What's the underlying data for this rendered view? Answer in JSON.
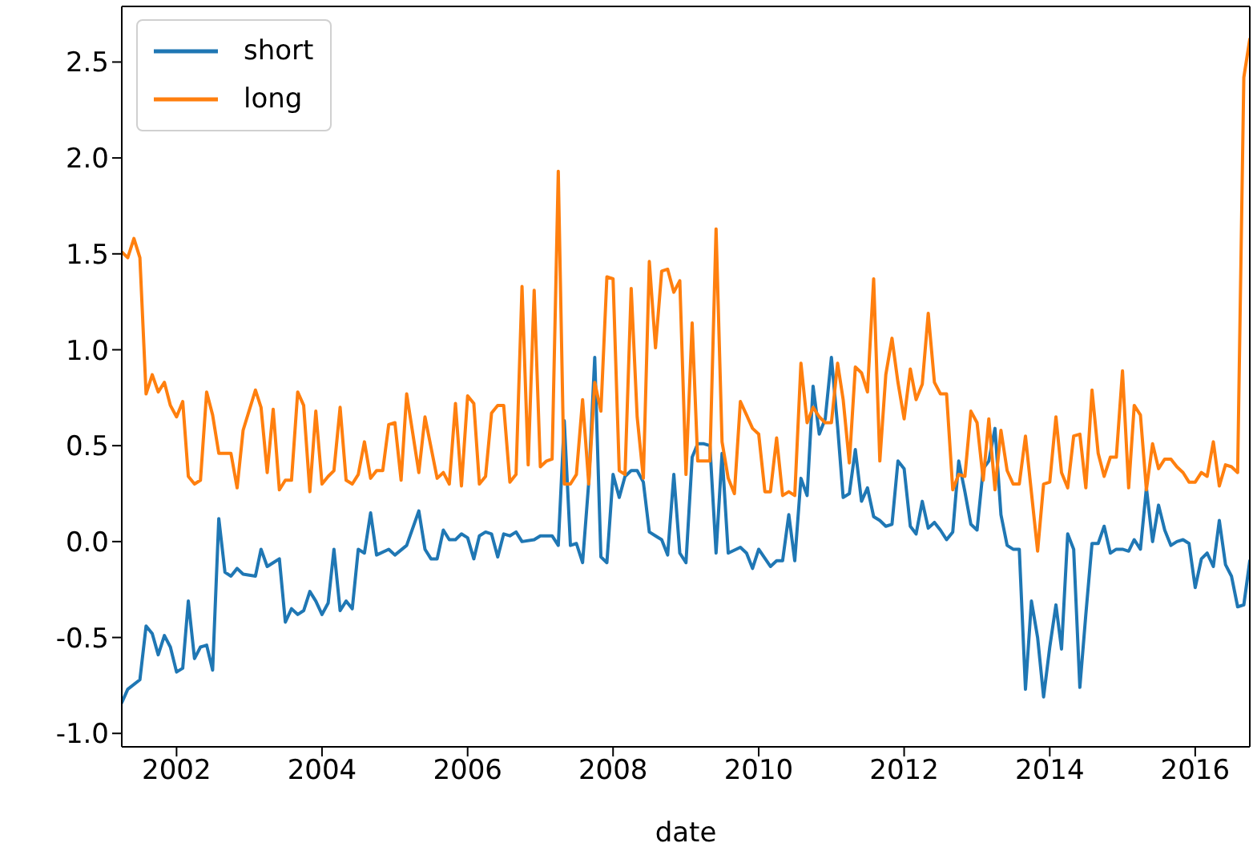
{
  "chart_data": {
    "type": "line",
    "xlabel": "date",
    "legend": "top left",
    "marker": "none",
    "line_style": "solid",
    "xlim": [
      "2001-04",
      "2016-10"
    ],
    "xticks": [
      "2002",
      "2004",
      "2006",
      "2008",
      "2010",
      "2012",
      "2014",
      "2016"
    ],
    "ylim": [
      -1.07,
      2.79
    ],
    "yticks": [
      {
        "value": -1,
        "label": "-1.0"
      },
      {
        "value": -0.5,
        "label": "-0.5"
      },
      {
        "value": 0,
        "label": "0.0"
      },
      {
        "value": 0.5,
        "label": "0.5"
      },
      {
        "value": 1,
        "label": "1.0"
      },
      {
        "value": 1.5,
        "label": "1.5"
      },
      {
        "value": 2,
        "label": "2.0"
      },
      {
        "value": 2.5,
        "label": "2.5"
      }
    ],
    "series": [
      {
        "name": "short",
        "color": "#1f77b4",
        "x": [
          "2001-04",
          "2001-05",
          "2001-07",
          "2001-08",
          "2001-09",
          "2001-10",
          "2001-11",
          "2001-12",
          "2002-01",
          "2002-02",
          "2002-03",
          "2002-04",
          "2002-05",
          "2002-06",
          "2002-07",
          "2002-08",
          "2002-09",
          "2002-10",
          "2002-11",
          "2002-12",
          "2003-02",
          "2003-03",
          "2003-04",
          "2003-05",
          "2003-06",
          "2003-07",
          "2003-08",
          "2003-09",
          "2003-10",
          "2003-11",
          "2003-12",
          "2004-01",
          "2004-02",
          "2004-03",
          "2004-04",
          "2004-05",
          "2004-06",
          "2004-07",
          "2004-08",
          "2004-09",
          "2004-10",
          "2004-12",
          "2005-01",
          "2005-03",
          "2005-05",
          "2005-06",
          "2005-07",
          "2005-08",
          "2005-09",
          "2005-10",
          "2005-11",
          "2005-12",
          "2006-01",
          "2006-02",
          "2006-03",
          "2006-04",
          "2006-05",
          "2006-06",
          "2006-07",
          "2006-08",
          "2006-09",
          "2006-10",
          "2006-12",
          "2007-01",
          "2007-03",
          "2007-04",
          "2007-05",
          "2007-06",
          "2007-07",
          "2007-08",
          "2007-09",
          "2007-10",
          "2007-11",
          "2007-12",
          "2008-01",
          "2008-02",
          "2008-03",
          "2008-04",
          "2008-05",
          "2008-06",
          "2008-07",
          "2008-08",
          "2008-09",
          "2008-10",
          "2008-11",
          "2008-12",
          "2009-01",
          "2009-02",
          "2009-03",
          "2009-04",
          "2009-05",
          "2009-06",
          "2009-07",
          "2009-08",
          "2009-10",
          "2009-11",
          "2009-12",
          "2010-01",
          "2010-03",
          "2010-04",
          "2010-05",
          "2010-06",
          "2010-07",
          "2010-08",
          "2010-09",
          "2010-10",
          "2010-11",
          "2010-12",
          "2011-01",
          "2011-02",
          "2011-03",
          "2011-04",
          "2011-05",
          "2011-06",
          "2011-07",
          "2011-08",
          "2011-09",
          "2011-10",
          "2011-11",
          "2011-12",
          "2012-01",
          "2012-02",
          "2012-03",
          "2012-04",
          "2012-05",
          "2012-06",
          "2012-07",
          "2012-08",
          "2012-09",
          "2012-10",
          "2012-11",
          "2012-12",
          "2013-01",
          "2013-02",
          "2013-03",
          "2013-04",
          "2013-05",
          "2013-06",
          "2013-07",
          "2013-08",
          "2013-09",
          "2013-10",
          "2013-11",
          "2013-12",
          "2014-01",
          "2014-02",
          "2014-03",
          "2014-04",
          "2014-05",
          "2014-06",
          "2014-07",
          "2014-08",
          "2014-09",
          "2014-10",
          "2014-11",
          "2014-12",
          "2015-01",
          "2015-02",
          "2015-03",
          "2015-04",
          "2015-05",
          "2015-06",
          "2015-07",
          "2015-08",
          "2015-09",
          "2015-10",
          "2015-11",
          "2015-12",
          "2016-01",
          "2016-02",
          "2016-03",
          "2016-04",
          "2016-05",
          "2016-06",
          "2016-07",
          "2016-08",
          "2016-09",
          "2016-10"
        ],
        "values": [
          -0.84,
          -0.77,
          -0.72,
          -0.44,
          -0.48,
          -0.59,
          -0.49,
          -0.55,
          -0.68,
          -0.66,
          -0.31,
          -0.61,
          -0.55,
          -0.54,
          -0.67,
          0.12,
          -0.16,
          -0.18,
          -0.14,
          -0.17,
          -0.18,
          -0.04,
          -0.13,
          -0.11,
          -0.09,
          -0.42,
          -0.35,
          -0.38,
          -0.36,
          -0.26,
          -0.31,
          -0.38,
          -0.32,
          -0.04,
          -0.36,
          -0.31,
          -0.35,
          -0.04,
          -0.06,
          0.15,
          -0.07,
          -0.04,
          -0.07,
          -0.02,
          0.16,
          -0.04,
          -0.09,
          -0.09,
          0.06,
          0.01,
          0.01,
          0.04,
          0.02,
          -0.09,
          0.03,
          0.05,
          0.04,
          -0.08,
          0.04,
          0.03,
          0.05,
          0.0,
          0.01,
          0.03,
          0.03,
          -0.02,
          0.63,
          -0.02,
          -0.01,
          -0.11,
          0.31,
          0.96,
          -0.08,
          -0.11,
          0.35,
          0.23,
          0.34,
          0.37,
          0.37,
          0.31,
          0.05,
          0.03,
          0.01,
          -0.07,
          0.35,
          -0.06,
          -0.11,
          0.44,
          0.51,
          0.51,
          0.5,
          -0.06,
          0.46,
          -0.06,
          -0.03,
          -0.06,
          -0.14,
          -0.04,
          -0.13,
          -0.1,
          -0.1,
          0.14,
          -0.1,
          0.33,
          0.24,
          0.81,
          0.56,
          0.64,
          0.96,
          0.6,
          0.23,
          0.25,
          0.48,
          0.21,
          0.28,
          0.13,
          0.11,
          0.08,
          0.09,
          0.42,
          0.38,
          0.08,
          0.04,
          0.21,
          0.07,
          0.1,
          0.06,
          0.01,
          0.05,
          0.42,
          0.26,
          0.09,
          0.06,
          0.38,
          0.42,
          0.59,
          0.14,
          -0.02,
          -0.04,
          -0.04,
          -0.77,
          -0.31,
          -0.5,
          -0.81,
          -0.55,
          -0.33,
          -0.56,
          0.04,
          -0.04,
          -0.76,
          -0.38,
          -0.01,
          -0.01,
          0.08,
          -0.06,
          -0.04,
          -0.04,
          -0.05,
          0.01,
          -0.04,
          0.28,
          0.0,
          0.19,
          0.06,
          -0.02,
          0.0,
          0.01,
          -0.01,
          -0.24,
          -0.09,
          -0.06,
          -0.13,
          0.11,
          -0.12,
          -0.18,
          -0.34,
          -0.33,
          -0.1
        ]
      },
      {
        "name": "long",
        "color": "#ff7f0e",
        "x": [
          "2001-04",
          "2001-05",
          "2001-06",
          "2001-07",
          "2001-08",
          "2001-09",
          "2001-10",
          "2001-11",
          "2001-12",
          "2002-01",
          "2002-02",
          "2002-03",
          "2002-04",
          "2002-05",
          "2002-06",
          "2002-07",
          "2002-08",
          "2002-10",
          "2002-11",
          "2002-12",
          "2003-02",
          "2003-03",
          "2003-04",
          "2003-05",
          "2003-06",
          "2003-07",
          "2003-08",
          "2003-09",
          "2003-10",
          "2003-11",
          "2003-12",
          "2004-01",
          "2004-02",
          "2004-03",
          "2004-04",
          "2004-05",
          "2004-06",
          "2004-07",
          "2004-08",
          "2004-09",
          "2004-10",
          "2004-11",
          "2004-12",
          "2005-01",
          "2005-02",
          "2005-03",
          "2005-05",
          "2005-06",
          "2005-08",
          "2005-09",
          "2005-10",
          "2005-11",
          "2005-12",
          "2006-01",
          "2006-02",
          "2006-03",
          "2006-04",
          "2006-05",
          "2006-06",
          "2006-07",
          "2006-08",
          "2006-09",
          "2006-10",
          "2006-11",
          "2006-12",
          "2007-01",
          "2007-02",
          "2007-03",
          "2007-04",
          "2007-05",
          "2007-06",
          "2007-07",
          "2007-08",
          "2007-09",
          "2007-10",
          "2007-11",
          "2007-12",
          "2008-01",
          "2008-02",
          "2008-03",
          "2008-04",
          "2008-05",
          "2008-06",
          "2008-07",
          "2008-08",
          "2008-09",
          "2008-10",
          "2008-11",
          "2008-12",
          "2009-01",
          "2009-02",
          "2009-03",
          "2009-05",
          "2009-06",
          "2009-07",
          "2009-08",
          "2009-09",
          "2009-10",
          "2009-11",
          "2009-12",
          "2010-01",
          "2010-02",
          "2010-03",
          "2010-04",
          "2010-05",
          "2010-06",
          "2010-07",
          "2010-08",
          "2010-09",
          "2010-10",
          "2010-11",
          "2010-12",
          "2011-01",
          "2011-02",
          "2011-03",
          "2011-04",
          "2011-05",
          "2011-06",
          "2011-07",
          "2011-08",
          "2011-09",
          "2011-10",
          "2011-11",
          "2011-12",
          "2012-01",
          "2012-02",
          "2012-03",
          "2012-04",
          "2012-05",
          "2012-06",
          "2012-07",
          "2012-08",
          "2012-09",
          "2012-10",
          "2012-11",
          "2012-12",
          "2013-01",
          "2013-02",
          "2013-03",
          "2013-04",
          "2013-05",
          "2013-06",
          "2013-07",
          "2013-08",
          "2013-09",
          "2013-11",
          "2013-12",
          "2014-01",
          "2014-02",
          "2014-03",
          "2014-04",
          "2014-05",
          "2014-06",
          "2014-07",
          "2014-08",
          "2014-09",
          "2014-10",
          "2014-11",
          "2014-12",
          "2015-01",
          "2015-02",
          "2015-03",
          "2015-04",
          "2015-05",
          "2015-06",
          "2015-07",
          "2015-08",
          "2015-09",
          "2015-10",
          "2015-11",
          "2015-12",
          "2016-01",
          "2016-02",
          "2016-03",
          "2016-04",
          "2016-05",
          "2016-06",
          "2016-07",
          "2016-08",
          "2016-09",
          "2016-10"
        ],
        "values": [
          1.51,
          1.48,
          1.58,
          1.48,
          0.77,
          0.87,
          0.78,
          0.83,
          0.71,
          0.65,
          0.73,
          0.34,
          0.3,
          0.32,
          0.78,
          0.66,
          0.46,
          0.46,
          0.28,
          0.58,
          0.79,
          0.7,
          0.36,
          0.69,
          0.27,
          0.32,
          0.32,
          0.78,
          0.71,
          0.26,
          0.68,
          0.3,
          0.34,
          0.37,
          0.7,
          0.32,
          0.3,
          0.35,
          0.52,
          0.33,
          0.37,
          0.37,
          0.61,
          0.62,
          0.32,
          0.77,
          0.36,
          0.65,
          0.33,
          0.36,
          0.3,
          0.72,
          0.29,
          0.76,
          0.72,
          0.3,
          0.34,
          0.67,
          0.71,
          0.71,
          0.31,
          0.35,
          1.33,
          0.4,
          1.31,
          0.39,
          0.42,
          0.43,
          1.93,
          0.3,
          0.3,
          0.35,
          0.74,
          0.3,
          0.83,
          0.68,
          1.38,
          1.37,
          0.37,
          0.35,
          1.32,
          0.65,
          0.33,
          1.46,
          1.01,
          1.41,
          1.42,
          1.3,
          1.36,
          0.35,
          1.14,
          0.42,
          0.42,
          1.63,
          0.52,
          0.33,
          0.25,
          0.73,
          0.66,
          0.59,
          0.56,
          0.26,
          0.26,
          0.54,
          0.24,
          0.26,
          0.24,
          0.93,
          0.62,
          0.7,
          0.65,
          0.62,
          0.62,
          0.93,
          0.74,
          0.41,
          0.91,
          0.88,
          0.78,
          1.37,
          0.42,
          0.87,
          1.06,
          0.83,
          0.64,
          0.9,
          0.74,
          0.82,
          1.19,
          0.83,
          0.77,
          0.77,
          0.27,
          0.35,
          0.34,
          0.68,
          0.62,
          0.32,
          0.64,
          0.27,
          0.58,
          0.37,
          0.3,
          0.3,
          0.55,
          -0.05,
          0.3,
          0.31,
          0.65,
          0.36,
          0.28,
          0.55,
          0.56,
          0.28,
          0.79,
          0.46,
          0.34,
          0.44,
          0.44,
          0.89,
          0.28,
          0.71,
          0.66,
          0.27,
          0.51,
          0.38,
          0.43,
          0.43,
          0.39,
          0.36,
          0.31,
          0.31,
          0.36,
          0.34,
          0.52,
          0.29,
          0.4,
          0.39,
          0.36,
          2.42,
          2.62
        ]
      }
    ]
  }
}
